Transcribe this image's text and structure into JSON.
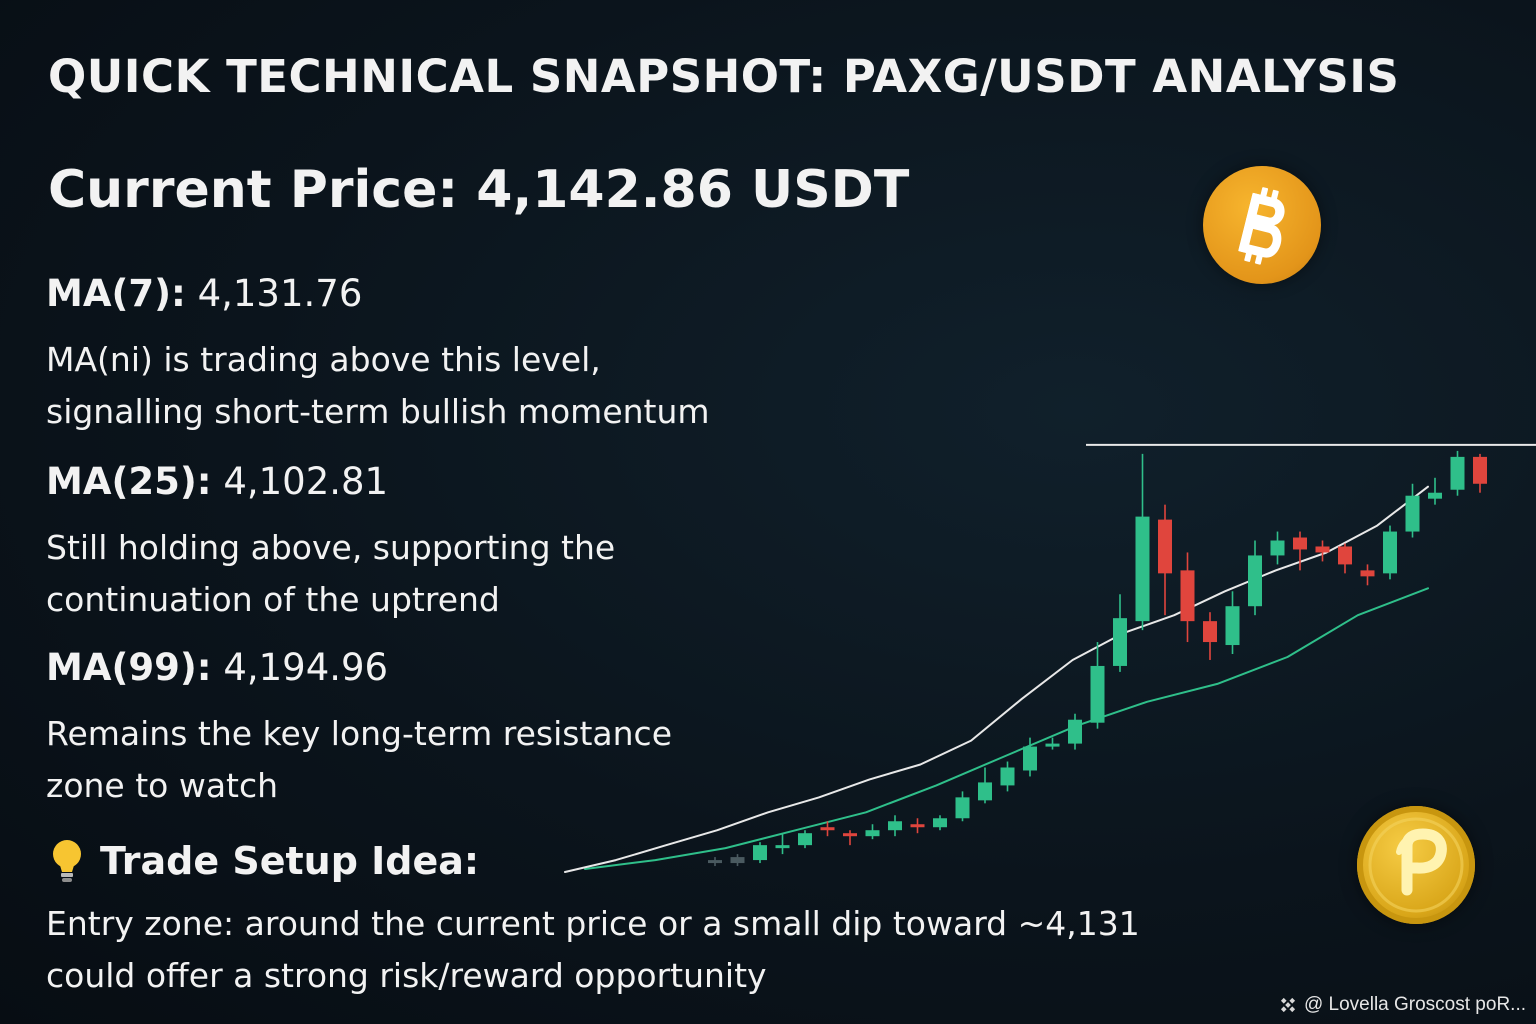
{
  "title": "QUICK TECHNICAL SNAPSHOT: PAXG/USDT ANALYSIS",
  "price": "Current Price: 4,142.86 USDT",
  "ma7": {
    "label": "MA(7):",
    "value": "4,131.76",
    "desc": [
      "MA(ni) is trading above this level,",
      "signalling short-term bullish momentum"
    ]
  },
  "ma25": {
    "label": "MA(25):",
    "value": "4,102.81",
    "desc": [
      "Still holding above, supporting the",
      "continuation of the uptrend"
    ]
  },
  "ma99": {
    "label": "MA(99):",
    "value": "4,194.96",
    "desc": [
      "Remains the key long-term resistance",
      "zone to watch"
    ]
  },
  "setup": {
    "icon": "lightbulb-icon",
    "label": "Trade Setup Idea:",
    "entry": [
      "Entry zone: around the current price or a small dip toward ~4,131",
      "could offer a strong risk/reward opportunity"
    ]
  },
  "watermark": {
    "icon": "binance-logo-icon",
    "text": "@ Lovella Groscost poR..."
  },
  "coins": {
    "top": "bitcoin-coin-icon",
    "bottom": "pax-gold-coin-icon"
  },
  "colors": {
    "background": "#0b141c",
    "up": "#2fbf8a",
    "down": "#e0453d",
    "ma_short": "#e8e8e8",
    "ma_long": "#2fbf8a",
    "coin": "#e8a020"
  },
  "chart_data": {
    "type": "candlestick",
    "candles": [
      {
        "o": 4040,
        "c": 4041,
        "h": 4042,
        "l": 4039
      },
      {
        "o": 4040,
        "c": 4042,
        "h": 4043,
        "l": 4039
      },
      {
        "o": 4041,
        "c": 4046,
        "h": 4047,
        "l": 4040
      },
      {
        "o": 4045,
        "c": 4046,
        "h": 4050,
        "l": 4043
      },
      {
        "o": 4046,
        "c": 4050,
        "h": 4051,
        "l": 4045
      },
      {
        "o": 4052,
        "c": 4051,
        "h": 4054,
        "l": 4049
      },
      {
        "o": 4050,
        "c": 4049,
        "h": 4051,
        "l": 4046
      },
      {
        "o": 4049,
        "c": 4051,
        "h": 4053,
        "l": 4048
      },
      {
        "o": 4051,
        "c": 4054,
        "h": 4056,
        "l": 4049
      },
      {
        "o": 4053,
        "c": 4052,
        "h": 4055,
        "l": 4050
      },
      {
        "o": 4052,
        "c": 4055,
        "h": 4056,
        "l": 4051
      },
      {
        "o": 4055,
        "c": 4062,
        "h": 4064,
        "l": 4054
      },
      {
        "o": 4061,
        "c": 4067,
        "h": 4072,
        "l": 4060
      },
      {
        "o": 4066,
        "c": 4072,
        "h": 4074,
        "l": 4064
      },
      {
        "o": 4071,
        "c": 4079,
        "h": 4082,
        "l": 4069
      },
      {
        "o": 4079,
        "c": 4080,
        "h": 4082,
        "l": 4078
      },
      {
        "o": 4080,
        "c": 4088,
        "h": 4090,
        "l": 4078
      },
      {
        "o": 4087,
        "c": 4106,
        "h": 4114,
        "l": 4085
      },
      {
        "o": 4106,
        "c": 4122,
        "h": 4130,
        "l": 4104
      },
      {
        "o": 4121,
        "c": 4156,
        "h": 4177,
        "l": 4118
      },
      {
        "o": 4155,
        "c": 4137,
        "h": 4160,
        "l": 4123
      },
      {
        "o": 4138,
        "c": 4121,
        "h": 4144,
        "l": 4114
      },
      {
        "o": 4121,
        "c": 4114,
        "h": 4124,
        "l": 4108
      },
      {
        "o": 4113,
        "c": 4126,
        "h": 4131,
        "l": 4110
      },
      {
        "o": 4126,
        "c": 4143,
        "h": 4148,
        "l": 4123
      },
      {
        "o": 4143,
        "c": 4148,
        "h": 4151,
        "l": 4140
      },
      {
        "o": 4149,
        "c": 4145,
        "h": 4151,
        "l": 4138
      },
      {
        "o": 4146,
        "c": 4144,
        "h": 4148,
        "l": 4141
      },
      {
        "o": 4146,
        "c": 4140,
        "h": 4147,
        "l": 4137
      },
      {
        "o": 4138,
        "c": 4136,
        "h": 4140,
        "l": 4133
      },
      {
        "o": 4137,
        "c": 4151,
        "h": 4153,
        "l": 4135
      },
      {
        "o": 4151,
        "c": 4163,
        "h": 4167,
        "l": 4149
      },
      {
        "o": 4162,
        "c": 4164,
        "h": 4169,
        "l": 4160
      },
      {
        "o": 4165,
        "c": 4176,
        "h": 4178,
        "l": 4163
      },
      {
        "o": 4176,
        "c": 4167,
        "h": 4177,
        "l": 4164
      }
    ],
    "resistance": 4180,
    "ma_short": [
      4037,
      4041,
      4046,
      4051,
      4057,
      4062,
      4068,
      4073,
      4081,
      4095,
      4108,
      4117,
      4123,
      4131,
      4138,
      4144,
      4153,
      4166
    ],
    "ma_long": [
      4038,
      4041,
      4045,
      4051,
      4057,
      4066,
      4076,
      4086,
      4094,
      4100,
      4109,
      4123,
      4132
    ]
  }
}
